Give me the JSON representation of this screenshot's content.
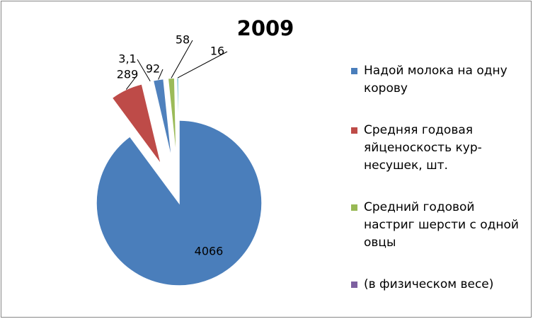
{
  "chart_data": {
    "type": "pie",
    "title": "2009",
    "values": [
      4066,
      289,
      3.1,
      92,
      58,
      16
    ],
    "value_labels": [
      "4066",
      "289",
      "3,1",
      "92",
      "58",
      "16"
    ],
    "colors": [
      "#4A7EBB",
      "#BE4B48",
      "#98B954",
      "#4F81BD",
      "#9BBB59",
      "#4BACC6"
    ],
    "legend": [
      {
        "name": "Надой молока на одну корову",
        "color": "#4A7EBB"
      },
      {
        "name": "Средняя годовая яйценоскость кур-несушек, шт.",
        "color": "#BE4B48"
      },
      {
        "name": "Средний годовой настриг шерсти с одной овцы",
        "color": "#98B954"
      },
      {
        "name": "(в физическом весе)",
        "color": "#7D60A0"
      }
    ]
  }
}
